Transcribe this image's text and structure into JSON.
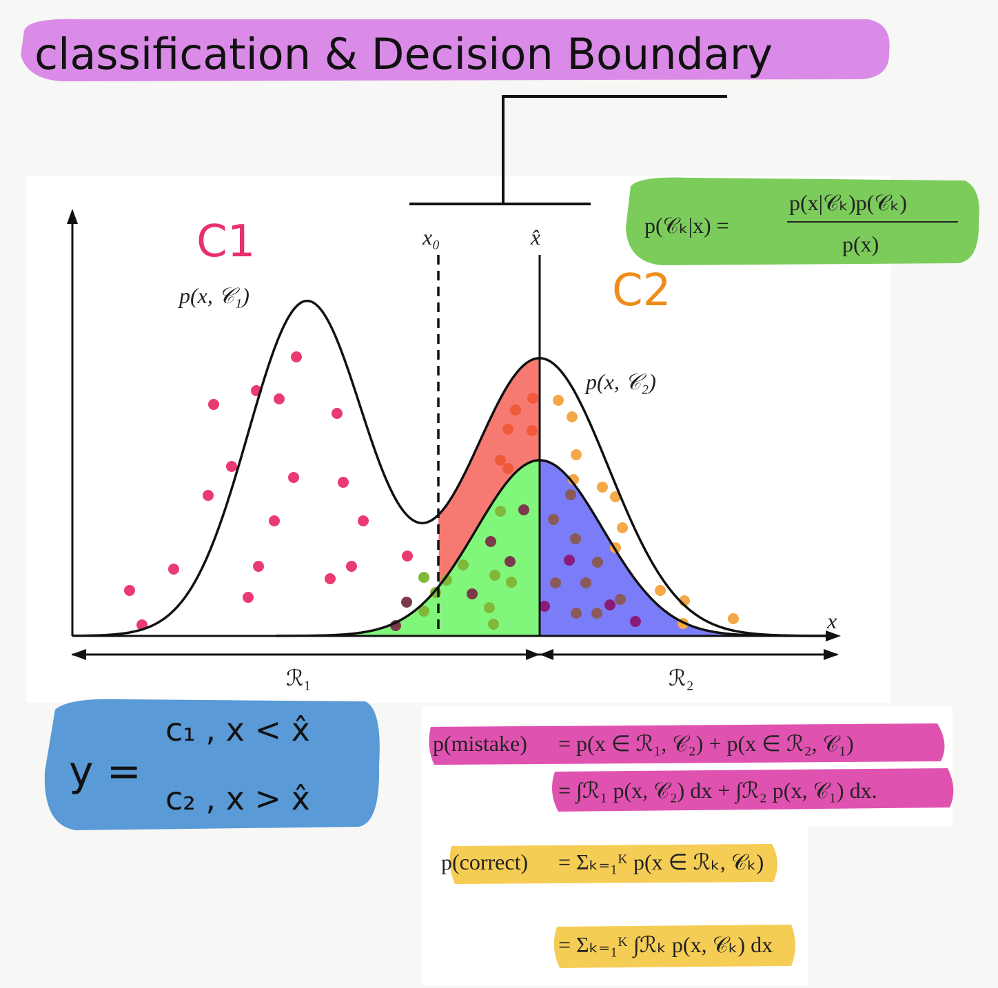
{
  "title": "classification & Decision Boundary",
  "labels": {
    "class1": "C1",
    "class2": "C2",
    "joint1": "p(x, 𝒞₁)",
    "joint2": "p(x, 𝒞₂)",
    "x0": "x₀",
    "xhat": "x̂",
    "x_axis": "x",
    "region1": "ℛ₁",
    "region2": "ℛ₂"
  },
  "bayes": {
    "lhs": "p(𝒞ₖ|x) =",
    "num": "p(x|𝒞ₖ)p(𝒞ₖ)",
    "den": "p(x)"
  },
  "rule": {
    "y": "y =",
    "case1": "c₁ ,  x < x̂",
    "case2": "c₂ ,  x > x̂"
  },
  "mistake": {
    "lhs": "p(mistake)",
    "line1": "=  p(x ∈ ℛ₁, 𝒞₂) + p(x ∈ ℛ₂, 𝒞₁)",
    "line2": "=  ∫ℛ₁ p(x, 𝒞₂) dx + ∫ℛ₂ p(x, 𝒞₁) dx."
  },
  "correct": {
    "lhs": "p(correct)",
    "line1": "=  Σₖ₌₁ᴷ p(x ∈ ℛₖ, 𝒞ₖ)",
    "line2": "=  Σₖ₌₁ᴷ ∫ℛₖ p(x, 𝒞ₖ) dx"
  },
  "colors": {
    "title_band": "#d67ee6",
    "bayes_band": "#7ccc5c",
    "rule_band": "#5a9ad6",
    "mistake_band": "#e052b0",
    "correct_band": "#f5cd55",
    "class1": "#e8306a",
    "class2": "#f08c1a",
    "red_region": "#f77a72",
    "green_region": "#80f77a",
    "blue_region": "#7b7cf7"
  }
}
